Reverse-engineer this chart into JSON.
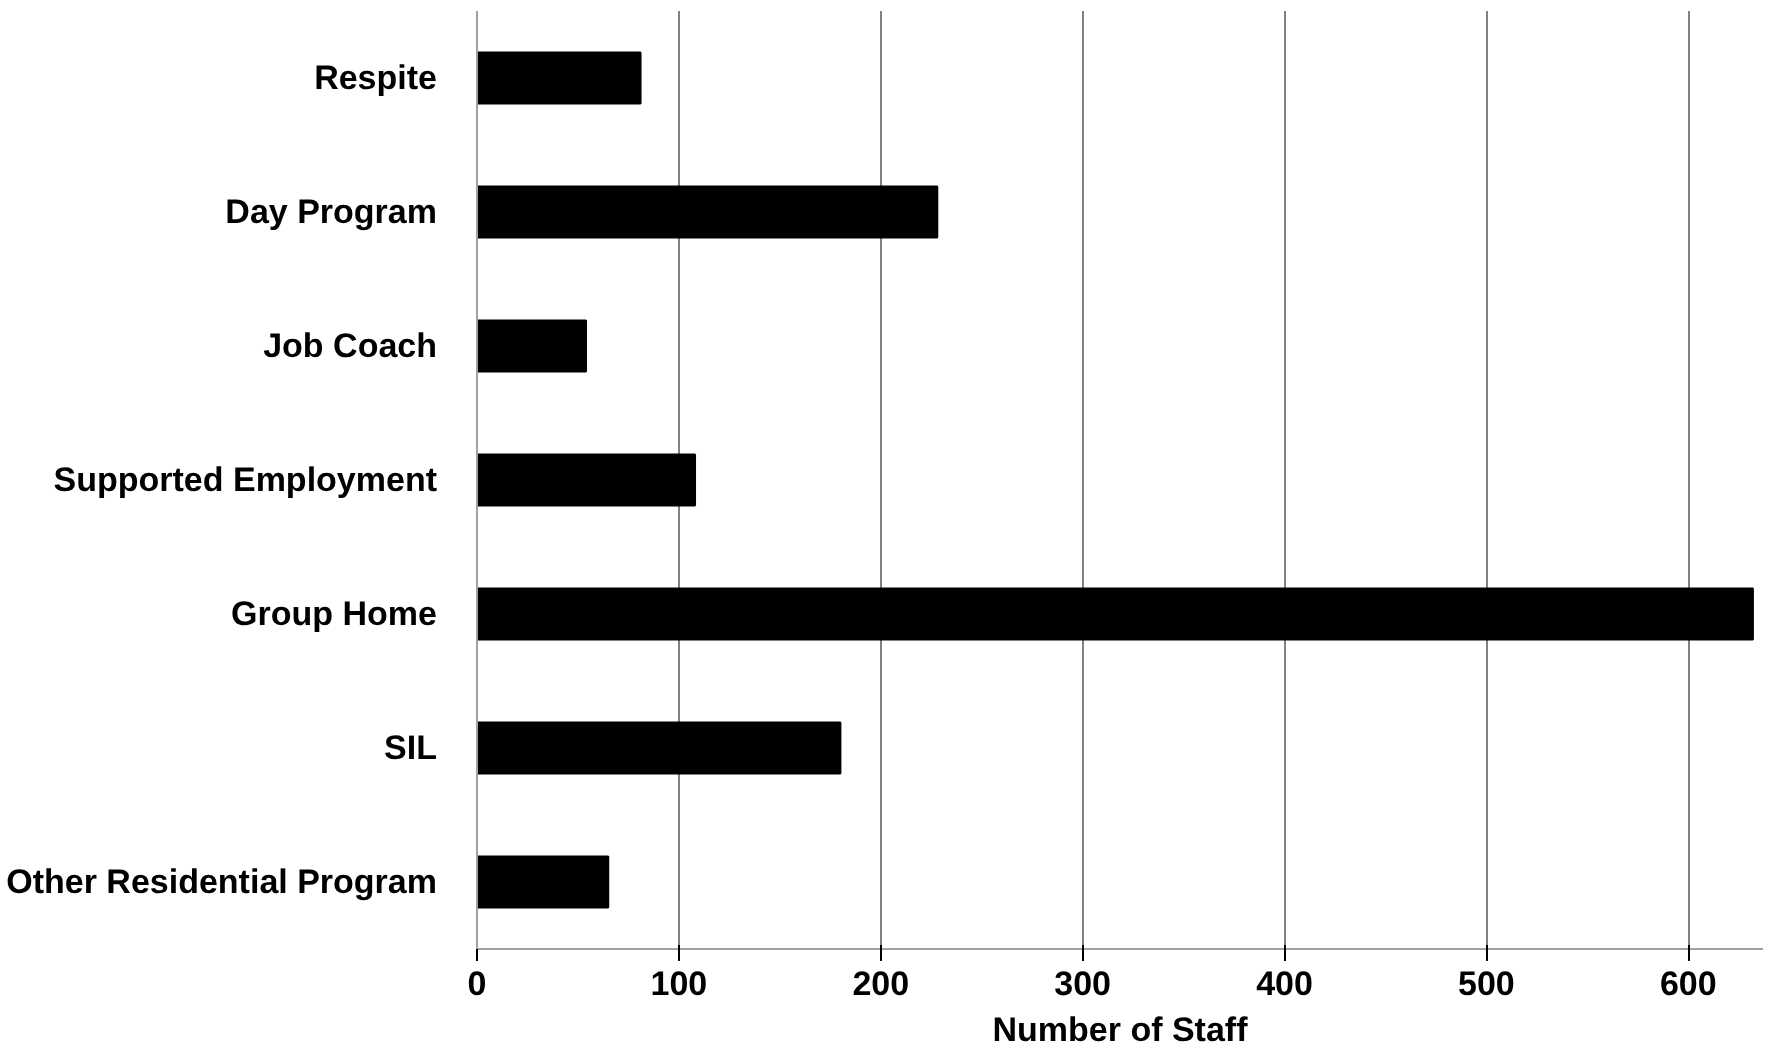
{
  "chart_data": {
    "type": "bar",
    "orientation": "horizontal",
    "xlabel": "Number of Staff",
    "categories": [
      "Respite",
      "Day Program",
      "Job Coach",
      "Supported Employment",
      "Group Home",
      "SIL",
      "Other Residential Program"
    ],
    "values": [
      81,
      228,
      54,
      108,
      632,
      180,
      65
    ],
    "color": "#000000",
    "xlim": [
      0,
      637
    ],
    "xticks": [
      0,
      100,
      200,
      300,
      400,
      500,
      600
    ],
    "grid": "x"
  }
}
